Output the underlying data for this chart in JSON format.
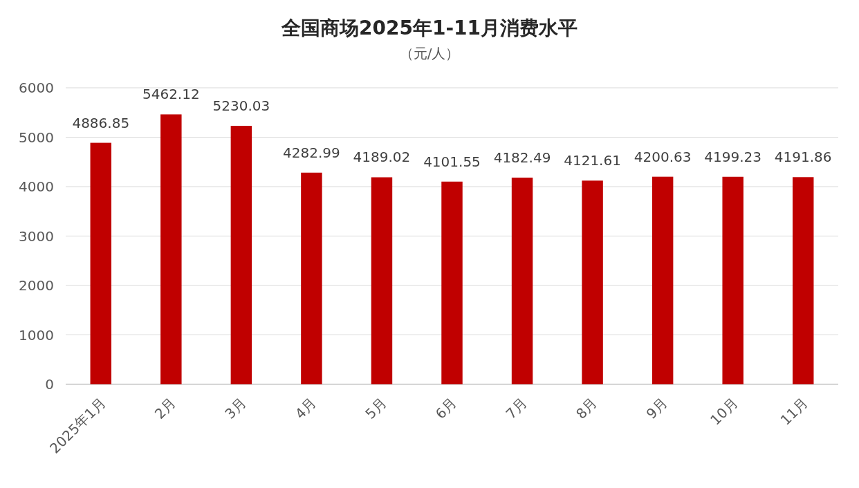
{
  "chart_data": {
    "type": "bar",
    "title": "全国商场2025年1-11月消费水平",
    "subtitle": "（元/人）",
    "categories": [
      "2025年1月",
      "2月",
      "3月",
      "4月",
      "5月",
      "6月",
      "7月",
      "8月",
      "9月",
      "10月",
      "11月"
    ],
    "values": [
      4886.85,
      5462.12,
      5230.03,
      4282.99,
      4189.02,
      4101.55,
      4182.49,
      4121.61,
      4200.63,
      4199.23,
      4191.86
    ],
    "color": "#c00000",
    "ylim": [
      0,
      6000
    ],
    "yticks": [
      0,
      1000,
      2000,
      3000,
      4000,
      5000,
      6000
    ],
    "grid": "y",
    "data_labels": true
  }
}
